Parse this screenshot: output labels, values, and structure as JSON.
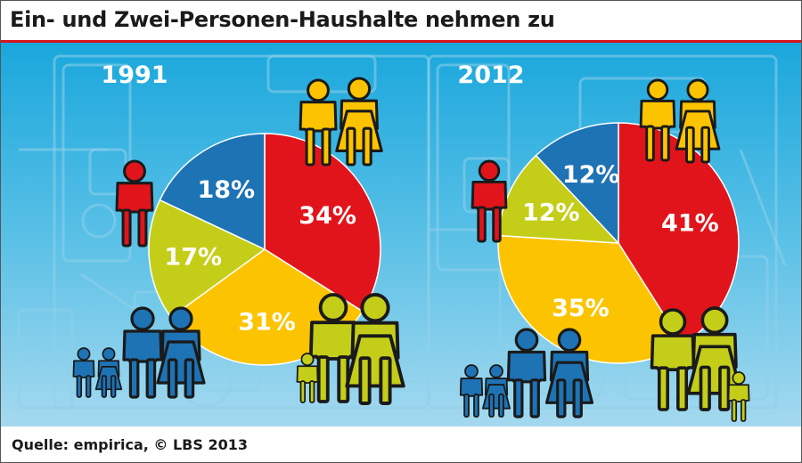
{
  "header": {
    "title": "Ein- und Zwei-Personen-Haushalte nehmen zu"
  },
  "footer": {
    "source": "Quelle: empirica, © LBS 2013"
  },
  "colors": {
    "one_person": "#e2141b",
    "two_person": "#fcc400",
    "three_person": "#c4ce18",
    "four_plus_person": "#1e73b5",
    "background": "#3cb4e2",
    "title_rule": "#d7141c"
  },
  "chart_data": [
    {
      "type": "pie",
      "title": "1991",
      "categories": [
        "1 person",
        "2 persons",
        "3 persons",
        "4+ persons"
      ],
      "values": [
        34,
        31,
        17,
        18
      ],
      "labels": [
        "34%",
        "31%",
        "17%",
        "18%"
      ],
      "icons": [
        "single-person-icon",
        "couple-icon",
        "family-three-icon",
        "family-four-icon"
      ]
    },
    {
      "type": "pie",
      "title": "2012",
      "categories": [
        "1 person",
        "2 persons",
        "3 persons",
        "4+ persons"
      ],
      "values": [
        41,
        35,
        12,
        12
      ],
      "labels": [
        "41%",
        "35%",
        "12%",
        "12%"
      ],
      "icons": [
        "single-person-icon",
        "couple-icon",
        "family-three-icon",
        "family-four-icon"
      ]
    }
  ]
}
